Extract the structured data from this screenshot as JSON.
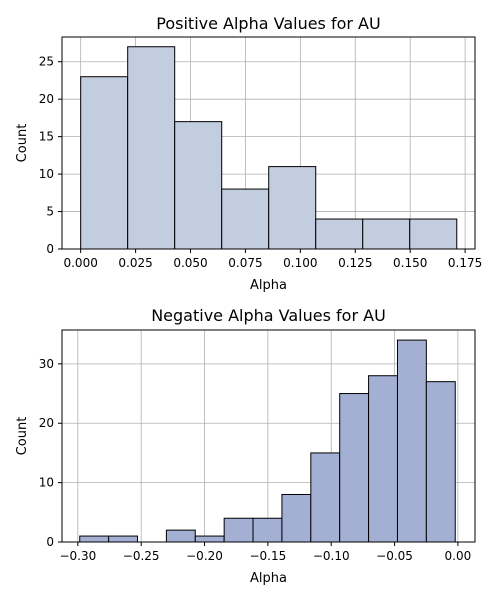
{
  "chart_data": [
    {
      "type": "bar",
      "title": "Positive Alpha Values for AU",
      "xlabel": "Alpha",
      "ylabel": "Count",
      "xlim": [
        -0.0085,
        0.1795
      ],
      "ylim": [
        0,
        28.3
      ],
      "xticks": [
        0.0,
        0.025,
        0.05,
        0.075,
        0.1,
        0.125,
        0.15,
        0.175
      ],
      "xtick_labels": [
        "0.000",
        "0.025",
        "0.050",
        "0.075",
        "0.100",
        "0.125",
        "0.150",
        "0.175"
      ],
      "yticks": [
        0,
        5,
        10,
        15,
        20,
        25
      ],
      "ytick_labels": [
        "0",
        "5",
        "10",
        "15",
        "20",
        "25"
      ],
      "grid": true,
      "bar_color": "#c3cde0",
      "bins": [
        {
          "x0": 0.0,
          "x1": 0.0214,
          "value": 23
        },
        {
          "x0": 0.0214,
          "x1": 0.0428,
          "value": 27
        },
        {
          "x0": 0.0428,
          "x1": 0.0642,
          "value": 17
        },
        {
          "x0": 0.0642,
          "x1": 0.0856,
          "value": 8
        },
        {
          "x0": 0.0856,
          "x1": 0.107,
          "value": 11
        },
        {
          "x0": 0.107,
          "x1": 0.1284,
          "value": 4
        },
        {
          "x0": 0.1284,
          "x1": 0.1498,
          "value": 4
        },
        {
          "x0": 0.1498,
          "x1": 0.1712,
          "value": 4
        }
      ]
    },
    {
      "type": "bar",
      "title": "Negative Alpha Values for AU",
      "xlabel": "Alpha",
      "ylabel": "Count",
      "xlim": [
        -0.3125,
        0.0135
      ],
      "ylim": [
        0,
        35.7
      ],
      "xticks": [
        -0.3,
        -0.25,
        -0.2,
        -0.15,
        -0.1,
        -0.05,
        0.0
      ],
      "xtick_labels": [
        "−0.30",
        "−0.25",
        "−0.20",
        "−0.15",
        "−0.10",
        "−0.05",
        "0.00"
      ],
      "yticks": [
        0,
        10,
        20,
        30
      ],
      "ytick_labels": [
        "0",
        "10",
        "20",
        "30"
      ],
      "grid": true,
      "bar_color": "#a3b0d4",
      "bins": [
        {
          "x0": -0.2985,
          "x1": -0.2757,
          "value": 1
        },
        {
          "x0": -0.2757,
          "x1": -0.2529,
          "value": 1
        },
        {
          "x0": -0.2529,
          "x1": -0.2301,
          "value": 0
        },
        {
          "x0": -0.2301,
          "x1": -0.2073,
          "value": 2
        },
        {
          "x0": -0.2073,
          "x1": -0.1845,
          "value": 1
        },
        {
          "x0": -0.1845,
          "x1": -0.1617,
          "value": 4
        },
        {
          "x0": -0.1617,
          "x1": -0.1389,
          "value": 4
        },
        {
          "x0": -0.1389,
          "x1": -0.1161,
          "value": 8
        },
        {
          "x0": -0.1161,
          "x1": -0.0933,
          "value": 15
        },
        {
          "x0": -0.0933,
          "x1": -0.0705,
          "value": 25
        },
        {
          "x0": -0.0705,
          "x1": -0.0477,
          "value": 28
        },
        {
          "x0": -0.0477,
          "x1": -0.0249,
          "value": 34
        },
        {
          "x0": -0.0249,
          "x1": -0.0021,
          "value": 27
        }
      ]
    }
  ]
}
